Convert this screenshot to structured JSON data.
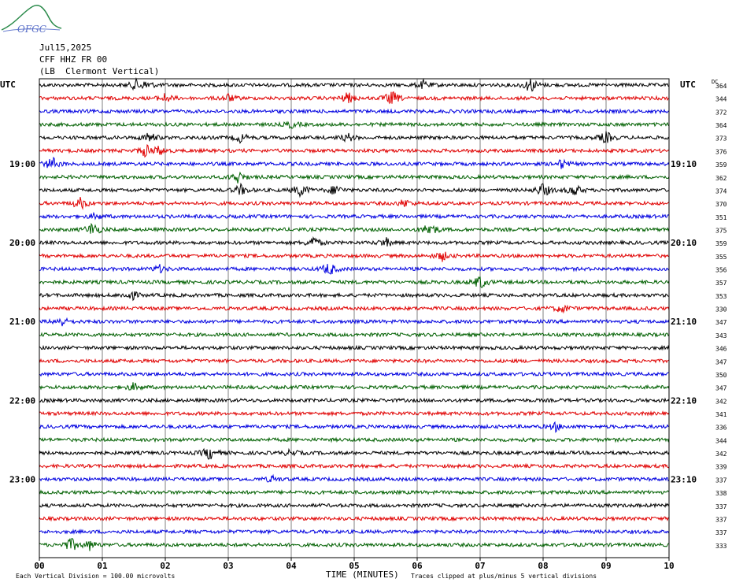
{
  "logo_text": "OFGC",
  "header": {
    "date": "Jul15,2025",
    "station": "CFF HHZ FR 00",
    "site": "(LB  Clermont Vertical)"
  },
  "axis": {
    "left_tz": "UTC",
    "right_tz": "UTC",
    "dc_label": "DC",
    "xlabel": "TIME (MINUTES)",
    "xticks": [
      "00",
      "01",
      "02",
      "03",
      "04",
      "05",
      "06",
      "07",
      "08",
      "09",
      "10"
    ],
    "left_times": [
      "19:00",
      "20:00",
      "21:00",
      "22:00",
      "23:00"
    ],
    "right_times": [
      "19:10",
      "20:10",
      "21:10",
      "22:10",
      "23:10"
    ]
  },
  "footer": {
    "left": "Each Vertical Division =  100.00 microvolts",
    "right": "Traces clipped at plus/minus 5 vertical divisions"
  },
  "colors": [
    "#000000",
    "#e00000",
    "#0000e0",
    "#006000"
  ],
  "chart_data": {
    "type": "line",
    "title": "Jul15,2025 CFF HHZ FR 00 (LB  Clermont Vertical)",
    "xlabel": "TIME (MINUTES)",
    "xlim": [
      0,
      10
    ],
    "ylabel": "",
    "grid": true,
    "trace_count": 36,
    "dc_offsets": [
      364,
      344,
      372,
      364,
      373,
      376,
      359,
      362,
      374,
      370,
      351,
      375,
      359,
      355,
      356,
      357,
      353,
      330,
      347,
      343,
      346,
      347,
      350,
      347,
      342,
      341,
      336,
      344,
      342,
      339,
      337,
      338,
      337,
      337,
      337,
      333
    ],
    "events": [
      {
        "trace": 0,
        "minute": 1.55,
        "amp": 8
      },
      {
        "trace": 0,
        "minute": 1.7,
        "amp": 6
      },
      {
        "trace": 0,
        "minute": 7.8,
        "amp": 10
      },
      {
        "trace": 0,
        "minute": 6.1,
        "amp": 5
      },
      {
        "trace": 1,
        "minute": 2.0,
        "amp": 6
      },
      {
        "trace": 1,
        "minute": 3.0,
        "amp": 5
      },
      {
        "trace": 1,
        "minute": 4.9,
        "amp": 7
      },
      {
        "trace": 1,
        "minute": 5.6,
        "amp": 10
      },
      {
        "trace": 3,
        "minute": 4.0,
        "amp": 4
      },
      {
        "trace": 4,
        "minute": 1.75,
        "amp": 7
      },
      {
        "trace": 4,
        "minute": 3.2,
        "amp": 6
      },
      {
        "trace": 4,
        "minute": 4.9,
        "amp": 5
      },
      {
        "trace": 4,
        "minute": 9.0,
        "amp": 8
      },
      {
        "trace": 5,
        "minute": 1.7,
        "amp": 9
      },
      {
        "trace": 5,
        "minute": 1.9,
        "amp": 6
      },
      {
        "trace": 6,
        "minute": 0.2,
        "amp": 9
      },
      {
        "trace": 6,
        "minute": 8.3,
        "amp": 6
      },
      {
        "trace": 7,
        "minute": 3.15,
        "amp": 8
      },
      {
        "trace": 8,
        "minute": 3.2,
        "amp": 7
      },
      {
        "trace": 8,
        "minute": 4.15,
        "amp": 10
      },
      {
        "trace": 8,
        "minute": 4.7,
        "amp": 7
      },
      {
        "trace": 8,
        "minute": 8.0,
        "amp": 10
      },
      {
        "trace": 8,
        "minute": 8.5,
        "amp": 8
      },
      {
        "trace": 9,
        "minute": 0.65,
        "amp": 9
      },
      {
        "trace": 9,
        "minute": 5.8,
        "amp": 5
      },
      {
        "trace": 10,
        "minute": 0.9,
        "amp": 4
      },
      {
        "trace": 11,
        "minute": 0.85,
        "amp": 10
      },
      {
        "trace": 11,
        "minute": 6.2,
        "amp": 10
      },
      {
        "trace": 12,
        "minute": 4.35,
        "amp": 8
      },
      {
        "trace": 12,
        "minute": 5.5,
        "amp": 6
      },
      {
        "trace": 13,
        "minute": 6.4,
        "amp": 6
      },
      {
        "trace": 14,
        "minute": 1.9,
        "amp": 5
      },
      {
        "trace": 14,
        "minute": 4.6,
        "amp": 9
      },
      {
        "trace": 15,
        "minute": 7.0,
        "amp": 9
      },
      {
        "trace": 16,
        "minute": 1.45,
        "amp": 7
      },
      {
        "trace": 17,
        "minute": 8.3,
        "amp": 6
      },
      {
        "trace": 18,
        "minute": 0.35,
        "amp": 6
      },
      {
        "trace": 23,
        "minute": 1.5,
        "amp": 5
      },
      {
        "trace": 26,
        "minute": 8.2,
        "amp": 5
      },
      {
        "trace": 28,
        "minute": 2.7,
        "amp": 9
      },
      {
        "trace": 28,
        "minute": 4.0,
        "amp": 4
      },
      {
        "trace": 30,
        "minute": 3.7,
        "amp": 4
      },
      {
        "trace": 35,
        "minute": 0.5,
        "amp": 10
      },
      {
        "trace": 35,
        "minute": 0.8,
        "amp": 6
      }
    ]
  }
}
